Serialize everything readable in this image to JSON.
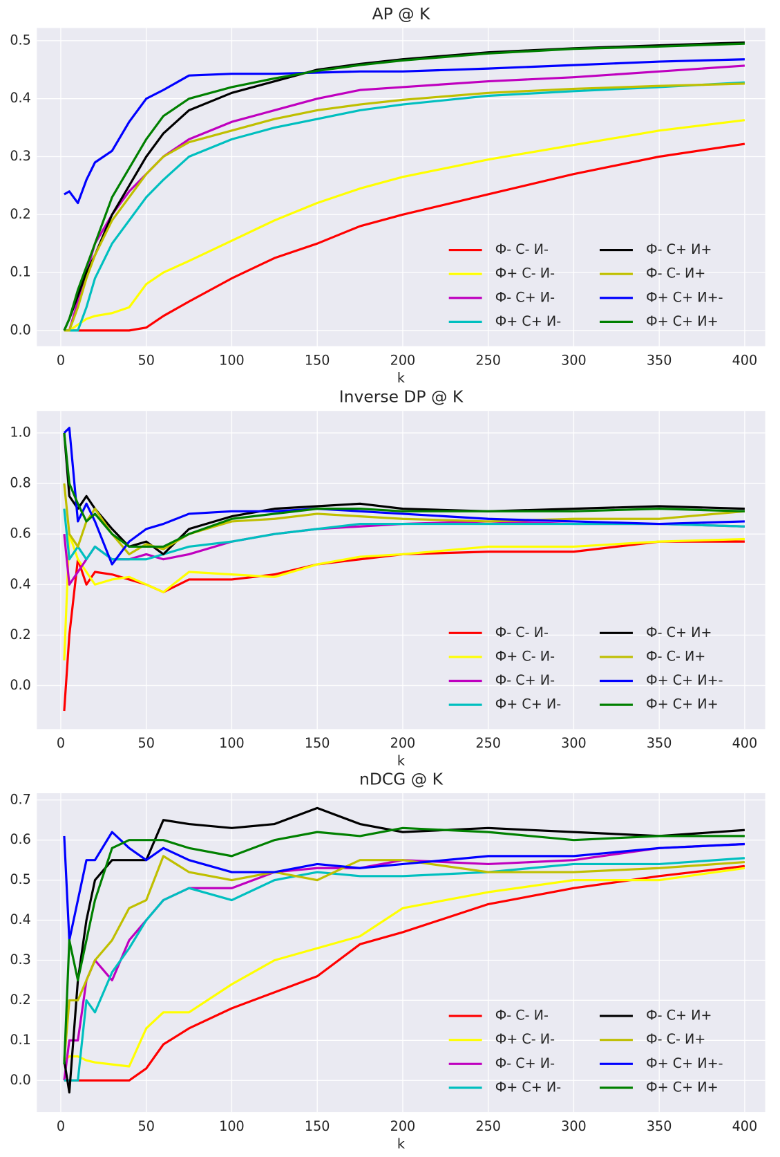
{
  "chart_data": [
    {
      "type": "line",
      "title": "AP @ K",
      "xlabel": "k",
      "x": [
        2,
        5,
        10,
        15,
        20,
        30,
        40,
        50,
        60,
        75,
        100,
        125,
        150,
        175,
        200,
        250,
        300,
        350,
        400
      ],
      "xlim": [
        -14,
        412
      ],
      "xticks": [
        0,
        50,
        100,
        150,
        200,
        250,
        300,
        350,
        400
      ],
      "ylim": [
        -0.027,
        0.522
      ],
      "yticks": [
        {
          "value": 0,
          "label": "0.0"
        },
        0.1,
        0.2,
        0.3,
        0.4,
        0.5
      ],
      "grid": true,
      "legend": "lower right",
      "legend_columns": 2,
      "series": [
        {
          "name": "Ф- С- И-",
          "color": "#ff0000",
          "values": [
            0,
            0,
            0,
            0,
            0,
            0,
            0,
            0.005,
            0.025,
            0.05,
            0.09,
            0.125,
            0.15,
            0.18,
            0.2,
            0.235,
            0.27,
            0.3,
            0.322
          ]
        },
        {
          "name": "Ф+ С- И-",
          "color": "#ffff00",
          "values": [
            0,
            0,
            0.01,
            0.02,
            0.025,
            0.03,
            0.04,
            0.08,
            0.1,
            0.12,
            0.155,
            0.19,
            0.22,
            0.245,
            0.265,
            0.295,
            0.32,
            0.345,
            0.363
          ]
        },
        {
          "name": "Ф- С+ И-",
          "color": "#bf00bf",
          "values": [
            0,
            0,
            0.05,
            0.1,
            0.15,
            0.2,
            0.24,
            0.27,
            0.3,
            0.33,
            0.36,
            0.38,
            0.4,
            0.415,
            0.42,
            0.43,
            0.437,
            0.447,
            0.457
          ]
        },
        {
          "name": "Ф+ С+ И-",
          "color": "#00bfbf",
          "values": [
            0,
            0,
            0,
            0.04,
            0.09,
            0.15,
            0.19,
            0.23,
            0.26,
            0.3,
            0.33,
            0.35,
            0.365,
            0.38,
            0.39,
            0.405,
            0.413,
            0.42,
            0.428
          ]
        },
        {
          "name": "Ф- С+ И+",
          "color": "#000000",
          "values": [
            0,
            0.02,
            0.06,
            0.1,
            0.13,
            0.2,
            0.25,
            0.3,
            0.34,
            0.38,
            0.41,
            0.43,
            0.45,
            0.46,
            0.468,
            0.48,
            0.487,
            0.492,
            0.497
          ]
        },
        {
          "name": "Ф- С- И+",
          "color": "#bfbf00",
          "values": [
            0,
            0,
            0.04,
            0.09,
            0.13,
            0.19,
            0.23,
            0.27,
            0.3,
            0.325,
            0.345,
            0.365,
            0.38,
            0.39,
            0.398,
            0.41,
            0.417,
            0.422,
            0.426
          ]
        },
        {
          "name": "Ф+ С+ И+-",
          "color": "#0000ff",
          "values": [
            0.235,
            0.24,
            0.22,
            0.26,
            0.29,
            0.31,
            0.36,
            0.4,
            0.415,
            0.44,
            0.443,
            0.443,
            0.445,
            0.447,
            0.447,
            0.452,
            0.458,
            0.464,
            0.468
          ]
        },
        {
          "name": "Ф+ С+ И+",
          "color": "#008000",
          "values": [
            0,
            0.02,
            0.07,
            0.11,
            0.15,
            0.23,
            0.28,
            0.33,
            0.37,
            0.4,
            0.42,
            0.435,
            0.448,
            0.458,
            0.466,
            0.478,
            0.486,
            0.49,
            0.495
          ]
        }
      ]
    },
    {
      "type": "line",
      "title": "Inverse DP @ K",
      "xlabel": "k",
      "x": [
        2,
        5,
        10,
        15,
        20,
        30,
        40,
        50,
        60,
        75,
        100,
        125,
        150,
        175,
        200,
        250,
        300,
        350,
        400
      ],
      "xlim": [
        -14,
        412
      ],
      "xticks": [
        0,
        50,
        100,
        150,
        200,
        250,
        300,
        350,
        400
      ],
      "ylim": [
        -0.172,
        1.087
      ],
      "yticks": [
        {
          "value": 0,
          "label": "0.0"
        },
        0.2,
        0.4,
        0.6,
        0.8,
        {
          "value": 1,
          "label": "1.0"
        }
      ],
      "grid": true,
      "legend": "lower right",
      "legend_columns": 2,
      "series": [
        {
          "name": "Ф- С- И-",
          "color": "#ff0000",
          "values": [
            -0.1,
            0.2,
            0.5,
            0.4,
            0.45,
            0.44,
            0.42,
            0.4,
            0.37,
            0.42,
            0.42,
            0.44,
            0.48,
            0.5,
            0.52,
            0.53,
            0.53,
            0.57,
            0.57
          ]
        },
        {
          "name": "Ф+ С- И-",
          "color": "#ffff00",
          "values": [
            0.1,
            0.6,
            0.5,
            0.45,
            0.4,
            0.42,
            0.43,
            0.4,
            0.37,
            0.45,
            0.44,
            0.43,
            0.48,
            0.51,
            0.52,
            0.55,
            0.55,
            0.57,
            0.58
          ]
        },
        {
          "name": "Ф- С+ И-",
          "color": "#bf00bf",
          "values": [
            0.6,
            0.4,
            0.45,
            0.5,
            0.55,
            0.5,
            0.5,
            0.52,
            0.5,
            0.52,
            0.57,
            0.6,
            0.62,
            0.63,
            0.64,
            0.65,
            0.64,
            0.64,
            0.63
          ]
        },
        {
          "name": "Ф+ С+ И-",
          "color": "#00bfbf",
          "values": [
            0.7,
            0.5,
            0.55,
            0.5,
            0.55,
            0.5,
            0.5,
            0.5,
            0.52,
            0.55,
            0.57,
            0.6,
            0.62,
            0.64,
            0.64,
            0.64,
            0.64,
            0.64,
            0.63
          ]
        },
        {
          "name": "Ф- С+ И+",
          "color": "#000000",
          "values": [
            1.0,
            0.75,
            0.7,
            0.75,
            0.7,
            0.62,
            0.55,
            0.57,
            0.52,
            0.62,
            0.67,
            0.7,
            0.71,
            0.72,
            0.7,
            0.69,
            0.7,
            0.71,
            0.7
          ]
        },
        {
          "name": "Ф- С- И+",
          "color": "#bfbf00",
          "values": [
            0.8,
            0.6,
            0.55,
            0.65,
            0.7,
            0.6,
            0.52,
            0.56,
            0.54,
            0.6,
            0.65,
            0.66,
            0.68,
            0.67,
            0.66,
            0.65,
            0.66,
            0.66,
            0.69
          ]
        },
        {
          "name": "Ф+ С+ И+-",
          "color": "#0000ff",
          "values": [
            1.0,
            1.02,
            0.65,
            0.72,
            0.65,
            0.48,
            0.57,
            0.62,
            0.64,
            0.68,
            0.69,
            0.69,
            0.7,
            0.69,
            0.68,
            0.66,
            0.65,
            0.64,
            0.65
          ]
        },
        {
          "name": "Ф+ С+ И+",
          "color": "#008000",
          "values": [
            1.0,
            0.8,
            0.72,
            0.65,
            0.68,
            0.6,
            0.55,
            0.55,
            0.55,
            0.6,
            0.66,
            0.68,
            0.7,
            0.7,
            0.69,
            0.69,
            0.69,
            0.7,
            0.69
          ]
        }
      ]
    },
    {
      "type": "line",
      "title": "nDCG @ K",
      "xlabel": "k",
      "x": [
        2,
        5,
        10,
        15,
        20,
        30,
        40,
        50,
        60,
        75,
        100,
        125,
        150,
        175,
        200,
        250,
        300,
        350,
        400
      ],
      "xlim": [
        -14,
        412
      ],
      "xticks": [
        0,
        50,
        100,
        150,
        200,
        250,
        300,
        350,
        400
      ],
      "ylim": [
        -0.079,
        0.717
      ],
      "yticks": [
        {
          "value": 0,
          "label": "0.0"
        },
        0.1,
        0.2,
        0.3,
        0.4,
        0.5,
        0.6,
        0.7
      ],
      "grid": true,
      "legend": "lower right",
      "legend_columns": 2,
      "series": [
        {
          "name": "Ф- С- И-",
          "color": "#ff0000",
          "values": [
            0,
            0,
            0,
            0,
            0,
            0,
            0,
            0.03,
            0.09,
            0.13,
            0.18,
            0.22,
            0.26,
            0.34,
            0.37,
            0.44,
            0.48,
            0.51,
            0.535
          ]
        },
        {
          "name": "Ф+ С- И-",
          "color": "#ffff00",
          "values": [
            0.05,
            0.06,
            0.06,
            0.05,
            0.045,
            0.04,
            0.035,
            0.13,
            0.17,
            0.17,
            0.24,
            0.3,
            0.33,
            0.36,
            0.43,
            0.47,
            0.5,
            0.5,
            0.53
          ]
        },
        {
          "name": "Ф- С+ И-",
          "color": "#bf00bf",
          "values": [
            0,
            0.1,
            0.1,
            0.25,
            0.3,
            0.25,
            0.35,
            0.4,
            0.45,
            0.48,
            0.48,
            0.52,
            0.53,
            0.53,
            0.55,
            0.54,
            0.55,
            0.58,
            0.59
          ]
        },
        {
          "name": "Ф+ С+ И-",
          "color": "#00bfbf",
          "values": [
            0,
            0,
            0,
            0.2,
            0.17,
            0.27,
            0.33,
            0.4,
            0.45,
            0.48,
            0.45,
            0.5,
            0.52,
            0.51,
            0.51,
            0.52,
            0.54,
            0.54,
            0.555
          ]
        },
        {
          "name": "Ф- С+ И+",
          "color": "#000000",
          "values": [
            0.05,
            -0.03,
            0.25,
            0.4,
            0.5,
            0.55,
            0.55,
            0.55,
            0.65,
            0.64,
            0.63,
            0.64,
            0.68,
            0.64,
            0.62,
            0.63,
            0.62,
            0.61,
            0.625
          ]
        },
        {
          "name": "Ф- С- И+",
          "color": "#bfbf00",
          "values": [
            0.05,
            0.2,
            0.2,
            0.25,
            0.3,
            0.35,
            0.43,
            0.45,
            0.56,
            0.52,
            0.5,
            0.52,
            0.5,
            0.55,
            0.55,
            0.52,
            0.52,
            0.53,
            0.545
          ]
        },
        {
          "name": "Ф+ С+ И+-",
          "color": "#0000ff",
          "values": [
            0.61,
            0.35,
            0.45,
            0.55,
            0.55,
            0.62,
            0.58,
            0.55,
            0.58,
            0.55,
            0.52,
            0.52,
            0.54,
            0.53,
            0.54,
            0.56,
            0.56,
            0.58,
            0.59
          ]
        },
        {
          "name": "Ф+ С+ И+",
          "color": "#008000",
          "values": [
            0.04,
            0.35,
            0.25,
            0.35,
            0.45,
            0.58,
            0.6,
            0.6,
            0.6,
            0.58,
            0.56,
            0.6,
            0.62,
            0.61,
            0.63,
            0.62,
            0.6,
            0.61,
            0.61
          ]
        }
      ]
    }
  ]
}
